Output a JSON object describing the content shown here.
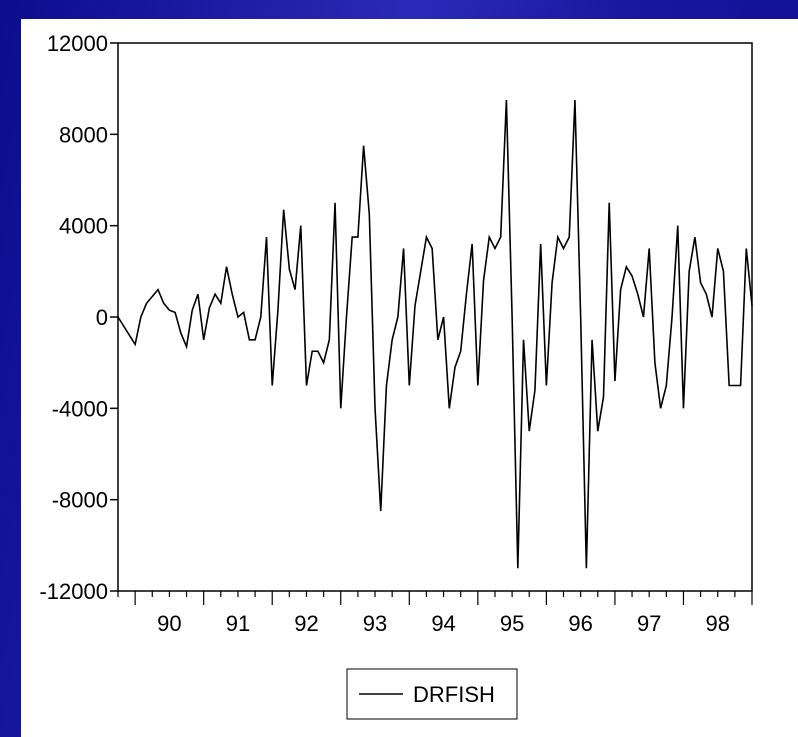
{
  "chart_data": {
    "type": "line",
    "title": "",
    "xlabel": "",
    "ylabel": "",
    "xlim": [
      1989.75,
      1999.0
    ],
    "ylim": [
      -12000,
      12000
    ],
    "y_ticks": [
      -12000,
      -8000,
      -4000,
      0,
      4000,
      8000,
      12000
    ],
    "y_tick_labels": [
      "-12000",
      "-8000",
      "-4000",
      "0",
      "4000",
      "8000",
      "12000"
    ],
    "x_tick_labels": [
      {
        "label": "90",
        "year": 1990
      },
      {
        "label": "91",
        "year": 1991
      },
      {
        "label": "92",
        "year": 1992
      },
      {
        "label": "93",
        "year": 1993
      },
      {
        "label": "94",
        "year": 1994
      },
      {
        "label": "95",
        "year": 1995
      },
      {
        "label": "96",
        "year": 1996
      },
      {
        "label": "97",
        "year": 1997
      },
      {
        "label": "98",
        "year": 1998
      }
    ],
    "start_year": 1990,
    "legend": {
      "position": "bottom-center"
    },
    "grid": false,
    "series": [
      {
        "name": "DRFISH",
        "color": "#000000",
        "frequency": "monthly",
        "values": [
          -1200,
          0,
          600,
          900,
          1200,
          600,
          300,
          200,
          -700,
          -1300,
          300,
          1000,
          -1000,
          400,
          1000,
          600,
          2200,
          1000,
          0,
          200,
          -1000,
          -1000,
          0,
          3500,
          -3000,
          300,
          4700,
          2100,
          1200,
          4000,
          -3000,
          -1500,
          -1500,
          -2000,
          -1000,
          5000,
          -4000,
          0,
          3500,
          3500,
          7500,
          4500,
          -4000,
          -8500,
          -3000,
          -1000,
          0,
          3000,
          -3000,
          500,
          2000,
          3500,
          3000,
          -1000,
          0,
          -4000,
          -2200,
          -1500,
          1000,
          3200,
          -3000,
          1600,
          3500,
          3000,
          3500,
          9500,
          0,
          -11000,
          -1000,
          -5000,
          -3200,
          3200,
          -3000,
          1500,
          3500,
          3000,
          3500,
          9500,
          0,
          -11000,
          -1000,
          -5000,
          -3500,
          5000,
          -2800,
          1200,
          2200,
          1800,
          1000,
          0,
          3000,
          -2000,
          -4000,
          -3000,
          0,
          4000,
          -4000,
          2000,
          3500,
          1500,
          1000,
          0,
          3000,
          2000,
          -3000,
          -3000,
          -3000,
          3000,
          500
        ]
      }
    ]
  }
}
